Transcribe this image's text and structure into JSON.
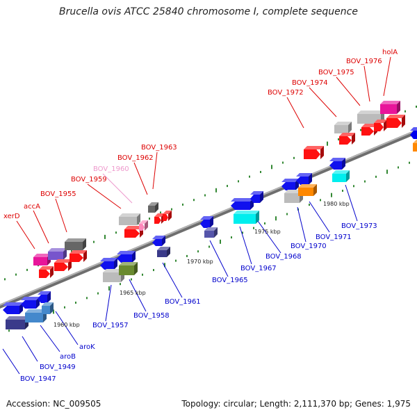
{
  "title": "Brucella ovis ATCC 25840 chromosome I, complete sequence",
  "footer": {
    "accession": "Accession: NC_009505",
    "stats": "Topology: circular; Length: 2,111,370 bp; Genes: 1,975"
  },
  "colors": {
    "backbone": "#888888",
    "tick": "#338833",
    "forward_label": "#dd0000",
    "reverse_label": "#0000cc",
    "faded_label": "#ee99cc"
  },
  "scale_labels": [
    "1960 kbp",
    "1965 kbp",
    "1970 kbp",
    "1975 kbp",
    "1980 kbp"
  ],
  "gene_labels": {
    "forward": [
      "xerD",
      "accA",
      "BOV_1955",
      "BOV_1959",
      "BOV_1962",
      "BOV_1963",
      "BOV_1972",
      "BOV_1974",
      "BOV_1975",
      "BOV_1976",
      "holA"
    ],
    "faded": [
      "BOV_1960"
    ],
    "reverse": [
      "BOV_1947",
      "BOV_1949",
      "aroB",
      "aroK",
      "BOV_1957",
      "BOV_1958",
      "BOV_1961",
      "BOV_1965",
      "BOV_1967",
      "BOV_1968",
      "BOV_1970",
      "BOV_1971",
      "BOV_1973"
    ]
  }
}
